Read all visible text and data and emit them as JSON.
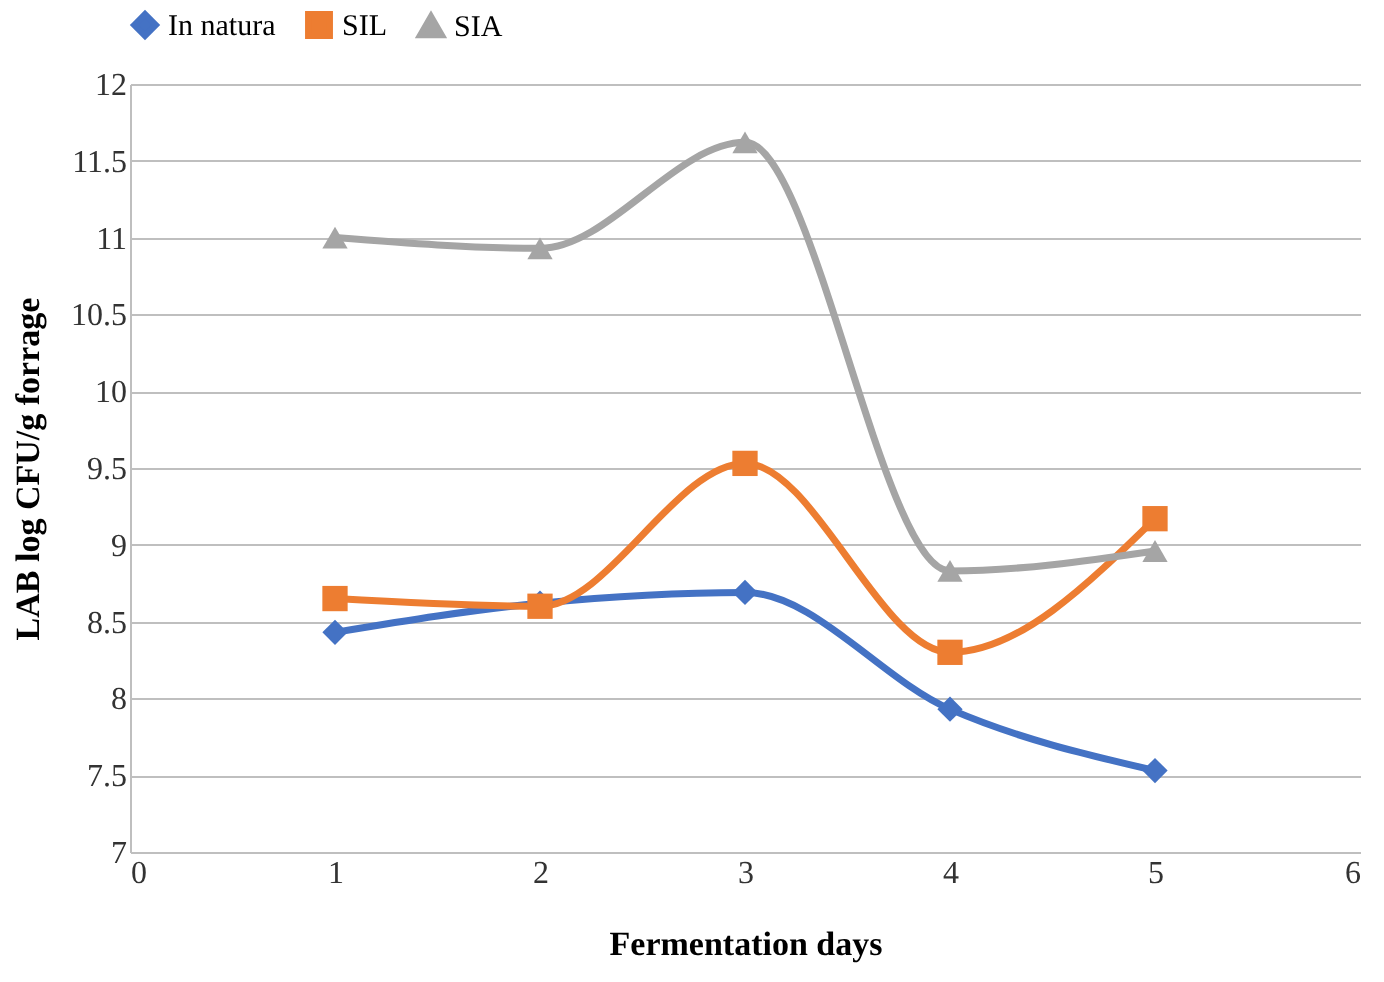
{
  "chart_data": {
    "type": "line",
    "xlabel": "Fermentation days",
    "ylabel": "LAB  log CFU/g forrage",
    "x": [
      1,
      2,
      3,
      4,
      5
    ],
    "series": [
      {
        "name": "In natura",
        "color": "#4472c4",
        "marker": "diamond",
        "values": [
          8.43,
          8.62,
          8.69,
          7.93,
          7.53
        ]
      },
      {
        "name": "SIL",
        "color": "#ed7d31",
        "marker": "square",
        "values": [
          8.65,
          8.6,
          9.53,
          8.3,
          9.17
        ]
      },
      {
        "name": "SIA",
        "color": "#a5a5a5",
        "marker": "triangle",
        "values": [
          11.0,
          10.93,
          11.62,
          8.83,
          8.96
        ]
      }
    ],
    "xlim": [
      0,
      6
    ],
    "xticks": [
      0,
      1,
      2,
      3,
      4,
      5,
      6
    ],
    "ylim": [
      7,
      12
    ],
    "yticks": [
      7,
      7.5,
      8,
      8.5,
      9,
      9.5,
      10,
      10.5,
      11,
      11.5,
      12
    ],
    "grid": "y",
    "legend": "top",
    "line_style": "solid"
  }
}
